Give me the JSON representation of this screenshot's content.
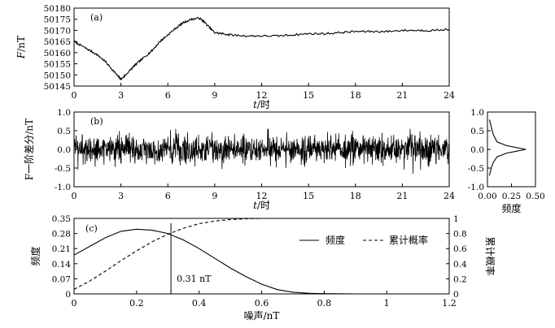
{
  "colors": {
    "line": "#000000",
    "background": "#ffffff"
  },
  "chart_data": [
    {
      "panel": "(a)",
      "type": "line",
      "ylabel_italic": "F",
      "ylabel_rest": "/nT",
      "xlabel_italic": "t",
      "xlabel_rest": "/时",
      "xlim": [
        0,
        24
      ],
      "ylim": [
        50145,
        50180
      ],
      "xticks": [
        0,
        3,
        6,
        9,
        12,
        15,
        18,
        21,
        24
      ],
      "yticks": [
        50145,
        50150,
        50155,
        50160,
        50165,
        50170,
        50175,
        50180
      ],
      "series": [
        {
          "x": [
            0,
            0.5,
            1,
            1.5,
            2,
            2.5,
            2.8,
            3,
            3.3,
            3.7,
            4,
            4.5,
            5,
            5.5,
            6,
            6.5,
            7,
            7.5,
            8,
            8.3,
            8.7,
            9,
            9.5,
            10,
            11,
            12,
            13,
            14,
            15,
            16,
            17,
            18,
            19,
            20,
            21,
            22,
            23,
            24
          ],
          "y": [
            50165,
            50163,
            50161,
            50159,
            50156,
            50152,
            50149.5,
            50148,
            50150,
            50153,
            50155,
            50158,
            50161,
            50165,
            50168,
            50171,
            50173.5,
            50175,
            50175.5,
            50174,
            50171,
            50169,
            50168.5,
            50168,
            50167.5,
            50167.5,
            50167.5,
            50168,
            50168.5,
            50168.5,
            50169,
            50169.5,
            50169.5,
            50169.5,
            50170,
            50170,
            50170,
            50170.5
          ]
        }
      ]
    },
    {
      "panel": "(b)",
      "type": "line",
      "ylabel": "F一阶差分/nT",
      "xlabel_italic": "t",
      "xlabel_rest": "/时",
      "xlim": [
        0,
        24
      ],
      "ylim": [
        -1.0,
        1.0
      ],
      "xticks": [
        0,
        3,
        6,
        9,
        12,
        15,
        18,
        21,
        24
      ],
      "yticks": [
        "-1.0",
        "-0.5",
        "0.0",
        "0.5",
        "1.0"
      ],
      "noise": {
        "mean": 0.0,
        "sd": 0.2,
        "min": -0.75,
        "max": 0.55,
        "samples": 1440
      }
    },
    {
      "panel": "side",
      "type": "line",
      "xlabel": "频度",
      "xlim": [
        0.0,
        0.5
      ],
      "ylim": [
        -1.0,
        1.0
      ],
      "xticks": [
        "0.00",
        "0.25",
        "0.50"
      ],
      "yticks": [
        "-1.0",
        "-0.5",
        "0.0",
        "0.5",
        "1.0"
      ],
      "series": [
        {
          "x": [
            0.02,
            0.04,
            0.06,
            0.1,
            0.2,
            0.3,
            0.4,
            0.3,
            0.2,
            0.1,
            0.06,
            0.04,
            0.02
          ],
          "y": [
            -0.7,
            -0.5,
            -0.35,
            -0.2,
            -0.1,
            -0.05,
            0.0,
            0.05,
            0.1,
            0.2,
            0.4,
            0.6,
            0.8
          ]
        }
      ]
    },
    {
      "panel": "(c)",
      "type": "line",
      "xlabel": "噪声/nT",
      "ylabel": "频度",
      "ylabel_right": "累计概率",
      "xlim": [
        0,
        1.2
      ],
      "ylim": [
        0,
        0.35
      ],
      "ylim_right": [
        0,
        1
      ],
      "xticks": [
        "0",
        "0.2",
        "0.4",
        "0.6",
        "0.8",
        "1",
        "1.2"
      ],
      "yticks": [
        "0",
        "0.07",
        "0.14",
        "0.21",
        "0.28",
        "0.35"
      ],
      "yticks_right": [
        "0",
        "0.2",
        "0.4",
        "0.6",
        "0.8",
        "1"
      ],
      "legend": [
        "频度",
        "累计概率"
      ],
      "annotation": {
        "label": "0.31 nT",
        "x": 0.31
      },
      "series": [
        {
          "name": "频度",
          "x": [
            0,
            0.05,
            0.1,
            0.15,
            0.2,
            0.25,
            0.3,
            0.35,
            0.4,
            0.45,
            0.5,
            0.55,
            0.6,
            0.65,
            0.7,
            0.75,
            0.8,
            0.9,
            1.0,
            1.05
          ],
          "y": [
            0.18,
            0.22,
            0.26,
            0.29,
            0.3,
            0.295,
            0.28,
            0.25,
            0.21,
            0.165,
            0.12,
            0.08,
            0.045,
            0.02,
            0.008,
            0.003,
            0.001,
            0.0,
            0.0,
            0.0
          ]
        },
        {
          "name": "累计概率",
          "x": [
            0,
            0.05,
            0.1,
            0.15,
            0.2,
            0.25,
            0.3,
            0.35,
            0.4,
            0.45,
            0.5,
            0.55,
            0.6,
            0.7,
            0.8,
            0.9,
            1.0,
            1.05
          ],
          "y": [
            0.06,
            0.17,
            0.3,
            0.44,
            0.57,
            0.69,
            0.79,
            0.87,
            0.93,
            0.965,
            0.985,
            0.995,
            1.0,
            1.0,
            1.0,
            1.0,
            1.0,
            1.0
          ]
        }
      ]
    }
  ]
}
